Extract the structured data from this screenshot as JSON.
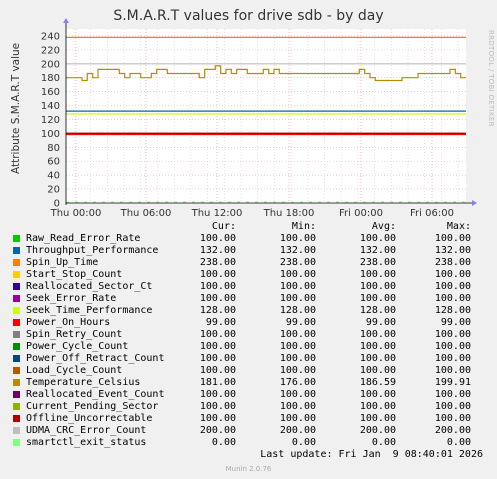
{
  "title": "S.M.A.R.T values for drive sdb - by day",
  "side_text": "RRDTOOL / TOBI OETIKER",
  "chart_data": {
    "type": "line",
    "title": "S.M.A.R.T values for drive sdb - by day",
    "ylabel": "Attribute S.M.A.R.T value",
    "ylim": [
      0,
      250
    ],
    "yticks": [
      0,
      20,
      40,
      60,
      80,
      100,
      120,
      140,
      160,
      180,
      200,
      220,
      240
    ],
    "xticks": [
      "Thu 00:00",
      "Thu 06:00",
      "Thu 12:00",
      "Thu 18:00",
      "Fri 00:00",
      "Fri 06:00"
    ],
    "grid": true,
    "series": [
      {
        "name": "Raw_Read_Error_Rate",
        "color": "#00cc00",
        "value": 100
      },
      {
        "name": "Throughput_Performance",
        "color": "#0066b3",
        "value": 132
      },
      {
        "name": "Spin_Up_Time",
        "color": "#ff8000",
        "value": 238
      },
      {
        "name": "Start_Stop_Count",
        "color": "#ffcc00",
        "value": 100
      },
      {
        "name": "Reallocated_Sector_Ct",
        "color": "#330099",
        "value": 100
      },
      {
        "name": "Seek_Error_Rate",
        "color": "#990099",
        "value": 100
      },
      {
        "name": "Seek_Time_Performance",
        "color": "#ccff00",
        "value": 128
      },
      {
        "name": "Power_On_Hours",
        "color": "#ff0000",
        "value": 99
      },
      {
        "name": "Spin_Retry_Count",
        "color": "#808080",
        "value": 100
      },
      {
        "name": "Power_Cycle_Count",
        "color": "#008f00",
        "value": 100
      },
      {
        "name": "Power_Off_Retract_Count",
        "color": "#00487d",
        "value": 100
      },
      {
        "name": "Load_Cycle_Count",
        "color": "#b35a00",
        "value": 100
      },
      {
        "name": "Temperature_Celsius",
        "color": "#b38f00",
        "values": [
          180,
          180,
          180,
          176,
          186,
          180,
          192,
          192,
          192,
          192,
          186,
          180,
          186,
          186,
          180,
          180,
          186,
          192,
          192,
          186,
          186,
          186,
          186,
          186,
          186,
          180,
          192,
          192,
          197,
          186,
          192,
          186,
          192,
          192,
          186,
          186,
          186,
          192,
          186,
          192,
          186,
          186,
          186,
          186,
          186,
          186,
          186,
          186,
          186,
          186,
          186,
          186,
          186,
          186,
          186,
          192,
          186,
          180,
          176,
          176,
          176,
          176,
          176,
          180,
          180,
          180,
          186,
          186,
          186,
          186,
          186,
          186,
          192,
          186,
          180,
          180
        ]
      },
      {
        "name": "Reallocated_Event_Count",
        "color": "#6b006b",
        "value": 100
      },
      {
        "name": "Current_Pending_Sector",
        "color": "#8fb300",
        "value": 100
      },
      {
        "name": "Offline_Uncorrectable",
        "color": "#b30000",
        "value": 100
      },
      {
        "name": "UDMA_CRC_Error_Count",
        "color": "#bebebe",
        "value": 200
      },
      {
        "name": "smartctl_exit_status",
        "color": "#80ff80",
        "value": 0
      }
    ]
  },
  "legend_headers": {
    "cur": "Cur:",
    "min": "Min:",
    "avg": "Avg:",
    "max": "Max:"
  },
  "legend": [
    {
      "name": "Raw_Read_Error_Rate",
      "cur": "100.00",
      "min": "100.00",
      "avg": "100.00",
      "max": "100.00"
    },
    {
      "name": "Throughput_Performance",
      "cur": "132.00",
      "min": "132.00",
      "avg": "132.00",
      "max": "132.00"
    },
    {
      "name": "Spin_Up_Time",
      "cur": "238.00",
      "min": "238.00",
      "avg": "238.00",
      "max": "238.00"
    },
    {
      "name": "Start_Stop_Count",
      "cur": "100.00",
      "min": "100.00",
      "avg": "100.00",
      "max": "100.00"
    },
    {
      "name": "Reallocated_Sector_Ct",
      "cur": "100.00",
      "min": "100.00",
      "avg": "100.00",
      "max": "100.00"
    },
    {
      "name": "Seek_Error_Rate",
      "cur": "100.00",
      "min": "100.00",
      "avg": "100.00",
      "max": "100.00"
    },
    {
      "name": "Seek_Time_Performance",
      "cur": "128.00",
      "min": "128.00",
      "avg": "128.00",
      "max": "128.00"
    },
    {
      "name": "Power_On_Hours",
      "cur": "99.00",
      "min": "99.00",
      "avg": "99.00",
      "max": "99.00"
    },
    {
      "name": "Spin_Retry_Count",
      "cur": "100.00",
      "min": "100.00",
      "avg": "100.00",
      "max": "100.00"
    },
    {
      "name": "Power_Cycle_Count",
      "cur": "100.00",
      "min": "100.00",
      "avg": "100.00",
      "max": "100.00"
    },
    {
      "name": "Power_Off_Retract_Count",
      "cur": "100.00",
      "min": "100.00",
      "avg": "100.00",
      "max": "100.00"
    },
    {
      "name": "Load_Cycle_Count",
      "cur": "100.00",
      "min": "100.00",
      "avg": "100.00",
      "max": "100.00"
    },
    {
      "name": "Temperature_Celsius",
      "cur": "181.00",
      "min": "176.00",
      "avg": "186.59",
      "max": "199.91"
    },
    {
      "name": "Reallocated_Event_Count",
      "cur": "100.00",
      "min": "100.00",
      "avg": "100.00",
      "max": "100.00"
    },
    {
      "name": "Current_Pending_Sector",
      "cur": "100.00",
      "min": "100.00",
      "avg": "100.00",
      "max": "100.00"
    },
    {
      "name": "Offline_Uncorrectable",
      "cur": "100.00",
      "min": "100.00",
      "avg": "100.00",
      "max": "100.00"
    },
    {
      "name": "UDMA_CRC_Error_Count",
      "cur": "200.00",
      "min": "200.00",
      "avg": "200.00",
      "max": "200.00"
    },
    {
      "name": "smartctl_exit_status",
      "cur": "0.00",
      "min": "0.00",
      "avg": "0.00",
      "max": "0.00"
    }
  ],
  "last_update": "Last update: Fri Jan  9 08:40:01 2026",
  "footer": "Munin 2.0.76"
}
